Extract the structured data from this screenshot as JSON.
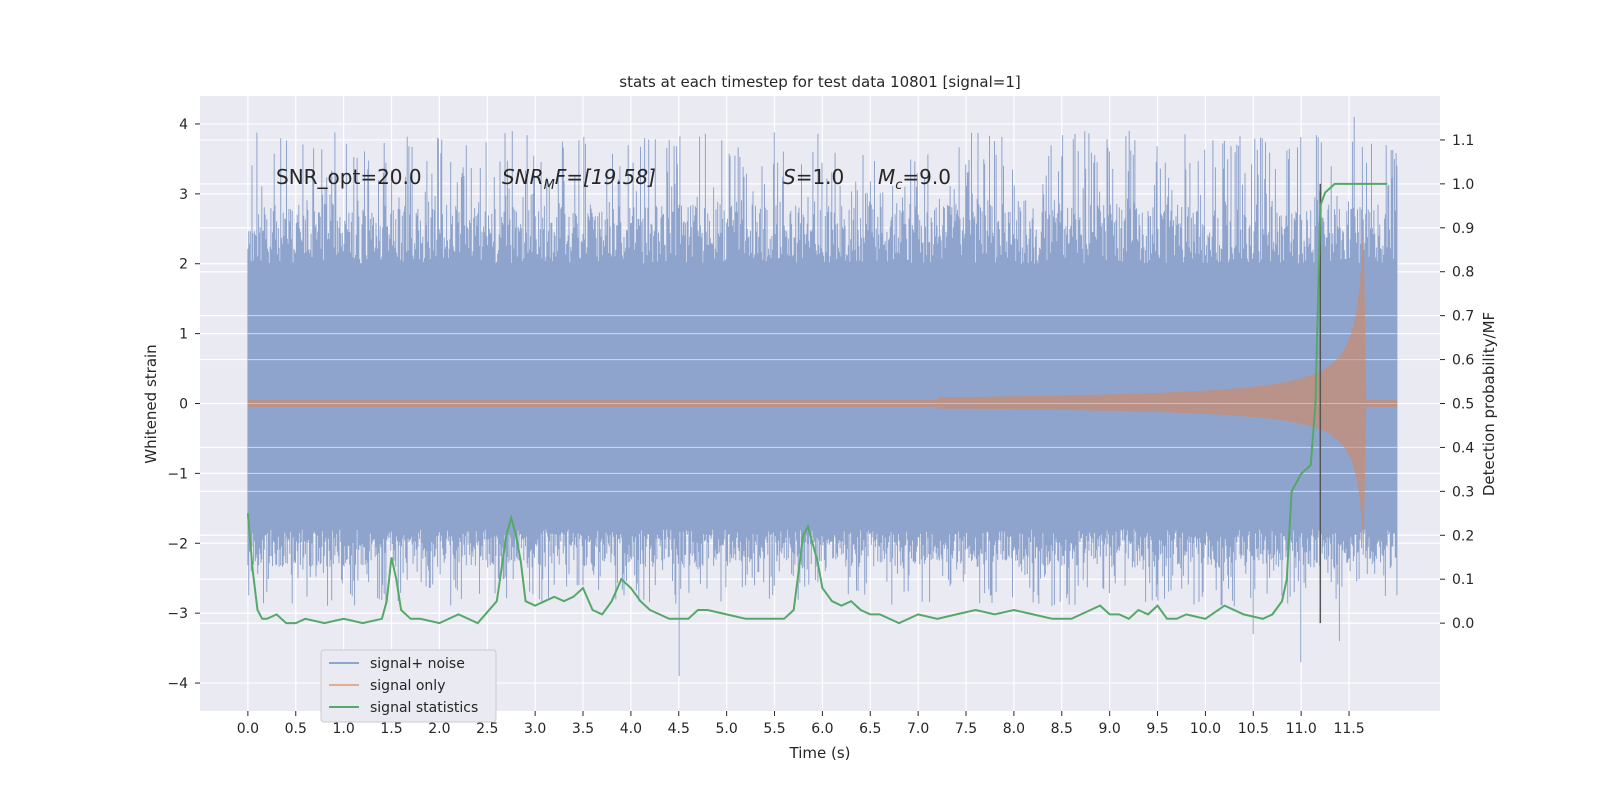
{
  "chart_data": {
    "type": "line",
    "title": "stats at each timestep for test data 10801 [signal=1]",
    "xlabel": "Time (s)",
    "ylabel": "Whitened strain",
    "ylabel_right": "Detection probability/MF",
    "xlim": [
      -0.5,
      12.45
    ],
    "ylim": [
      -4.4,
      4.4
    ],
    "ylim_right": [
      -0.2,
      1.2
    ],
    "x_ticks": [
      "0.0",
      "0.5",
      "1.0",
      "1.5",
      "2.0",
      "2.5",
      "3.0",
      "3.5",
      "4.0",
      "4.5",
      "5.0",
      "5.5",
      "6.0",
      "6.5",
      "7.0",
      "7.5",
      "8.0",
      "8.5",
      "9.0",
      "9.5",
      "10.0",
      "10.5",
      "11.0",
      "11.5"
    ],
    "y_ticks": [
      "4",
      "3",
      "2",
      "1",
      "0",
      "−1",
      "−2",
      "−3",
      "−4"
    ],
    "y_right_ticks": [
      "1.1",
      "1.0",
      "0.9",
      "0.8",
      "0.7",
      "0.6",
      "0.5",
      "0.4",
      "0.3",
      "0.2",
      "0.1",
      "0.0"
    ],
    "grid": true,
    "legend_position": "lower-left",
    "annotations": {
      "snr_opt": "SNR_opt=20.0",
      "snr_mf_main": "SNR",
      "snr_mf_sub": "M",
      "snr_mf_rest": "F=[19.58]",
      "s_var": "S",
      "s_rest": "=1.0",
      "mc_var": "M",
      "mc_sub": "c",
      "mc_rest": "=9.0"
    },
    "marker_line_x": 11.2,
    "series": [
      {
        "name": "signal+ noise",
        "color": "#8fa4cc",
        "axis": "left",
        "duration": 12.0,
        "core_amplitude": 1.3,
        "upper_peak_range": [
          2.0,
          3.9
        ],
        "lower_peak_range": [
          -2.9,
          -1.8
        ],
        "notable_peaks": [
          {
            "x": 11.55,
            "y": 4.1
          },
          {
            "x": 9.2,
            "y": 3.9
          },
          {
            "x": 5.9,
            "y": 3.6
          },
          {
            "x": 4.5,
            "y": -3.9
          },
          {
            "x": 11.0,
            "y": -3.7
          },
          {
            "x": 11.4,
            "y": -3.4
          },
          {
            "x": 10.5,
            "y": -3.3
          }
        ]
      },
      {
        "name": "signal only",
        "color": "#dd8452",
        "axis": "left",
        "chirp_start": 7.2,
        "merger_time": 11.65,
        "peak_upper": 2.6,
        "peak_lower": -2.1
      },
      {
        "name": "signal statistics",
        "color": "#55a868",
        "axis": "right",
        "x": [
          0.0,
          0.05,
          0.1,
          0.15,
          0.2,
          0.3,
          0.4,
          0.5,
          0.6,
          0.8,
          1.0,
          1.2,
          1.4,
          1.45,
          1.5,
          1.55,
          1.6,
          1.7,
          1.8,
          2.0,
          2.2,
          2.4,
          2.6,
          2.7,
          2.75,
          2.8,
          2.85,
          2.9,
          3.0,
          3.1,
          3.2,
          3.3,
          3.4,
          3.5,
          3.6,
          3.7,
          3.8,
          3.9,
          4.0,
          4.1,
          4.2,
          4.3,
          4.4,
          4.5,
          4.6,
          4.7,
          4.8,
          5.0,
          5.2,
          5.4,
          5.6,
          5.7,
          5.8,
          5.85,
          5.9,
          5.95,
          6.0,
          6.1,
          6.2,
          6.3,
          6.4,
          6.5,
          6.6,
          6.8,
          7.0,
          7.2,
          7.4,
          7.6,
          7.8,
          8.0,
          8.2,
          8.4,
          8.6,
          8.8,
          8.9,
          9.0,
          9.1,
          9.2,
          9.3,
          9.4,
          9.5,
          9.6,
          9.7,
          9.8,
          10.0,
          10.2,
          10.4,
          10.6,
          10.7,
          10.8,
          10.85,
          10.9,
          11.0,
          11.1,
          11.15,
          11.2,
          11.25,
          11.3,
          11.35,
          11.4,
          11.5,
          11.6,
          11.7,
          11.8,
          11.9
        ],
        "y": [
          0.25,
          0.12,
          0.03,
          0.01,
          0.01,
          0.02,
          0.0,
          0.0,
          0.01,
          0.0,
          0.01,
          0.0,
          0.01,
          0.05,
          0.15,
          0.1,
          0.03,
          0.01,
          0.01,
          0.0,
          0.02,
          0.0,
          0.05,
          0.2,
          0.24,
          0.2,
          0.14,
          0.05,
          0.04,
          0.05,
          0.06,
          0.05,
          0.06,
          0.08,
          0.03,
          0.02,
          0.05,
          0.1,
          0.08,
          0.05,
          0.03,
          0.02,
          0.01,
          0.01,
          0.01,
          0.03,
          0.03,
          0.02,
          0.01,
          0.01,
          0.01,
          0.03,
          0.2,
          0.22,
          0.18,
          0.14,
          0.08,
          0.05,
          0.04,
          0.05,
          0.03,
          0.02,
          0.02,
          0.0,
          0.02,
          0.01,
          0.02,
          0.03,
          0.02,
          0.03,
          0.02,
          0.01,
          0.01,
          0.03,
          0.04,
          0.02,
          0.02,
          0.01,
          0.03,
          0.02,
          0.04,
          0.01,
          0.01,
          0.02,
          0.01,
          0.04,
          0.02,
          0.01,
          0.02,
          0.05,
          0.1,
          0.3,
          0.34,
          0.36,
          0.5,
          0.95,
          0.98,
          0.99,
          1.0,
          1.0,
          1.0,
          1.0,
          1.0,
          1.0,
          1.0
        ]
      }
    ]
  }
}
